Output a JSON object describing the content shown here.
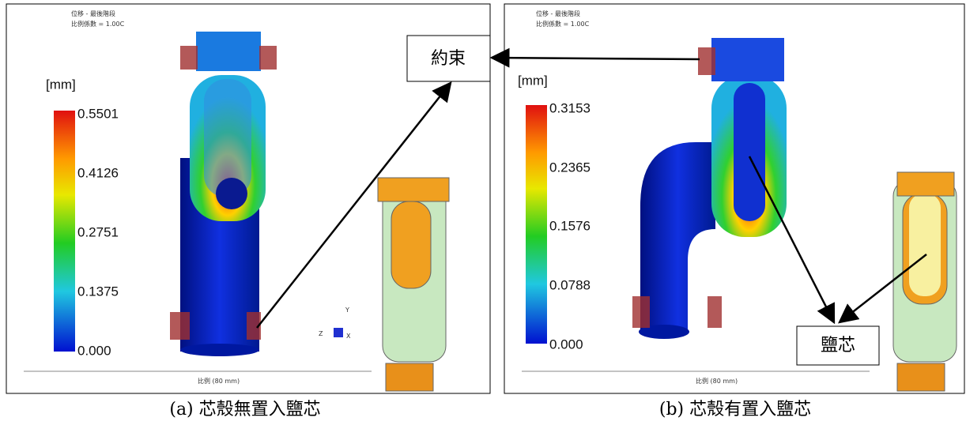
{
  "panels": [
    {
      "header_lines": [
        "位移 - 最後階段",
        "比例係數 = 1.00C"
      ],
      "unit": "[mm]",
      "legend_labels": [
        "0.5501",
        "0.4126",
        "0.2751",
        "0.1375",
        "0.000"
      ],
      "axis_labels": [
        "Y",
        "Z",
        "X"
      ],
      "scale_label": "比例 (80 mm)",
      "caption": "(a) 芯殼無置入鹽芯"
    },
    {
      "header_lines": [
        "位移 - 最後階段",
        "比例係數 = 1.00C"
      ],
      "unit": "[mm]",
      "legend_labels": [
        "0.3153",
        "0.2365",
        "0.1576",
        "0.0788",
        "0.000"
      ],
      "scale_label": "比例 (80 mm)",
      "caption": "(b) 芯殼有置入鹽芯"
    }
  ],
  "callouts": {
    "constraint": "約束",
    "salt_core": "鹽芯"
  }
}
